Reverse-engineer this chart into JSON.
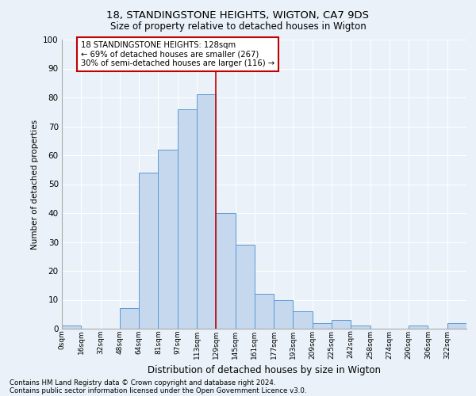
{
  "title1": "18, STANDINGSTONE HEIGHTS, WIGTON, CA7 9DS",
  "title2": "Size of property relative to detached houses in Wigton",
  "xlabel": "Distribution of detached houses by size in Wigton",
  "ylabel": "Number of detached properties",
  "footnote1": "Contains HM Land Registry data © Crown copyright and database right 2024.",
  "footnote2": "Contains public sector information licensed under the Open Government Licence v3.0.",
  "bar_labels": [
    "0sqm",
    "16sqm",
    "32sqm",
    "48sqm",
    "64sqm",
    "81sqm",
    "97sqm",
    "113sqm",
    "129sqm",
    "145sqm",
    "161sqm",
    "177sqm",
    "193sqm",
    "209sqm",
    "225sqm",
    "242sqm",
    "258sqm",
    "274sqm",
    "290sqm",
    "306sqm",
    "322sqm"
  ],
  "bar_values": [
    1,
    0,
    0,
    7,
    54,
    62,
    76,
    81,
    40,
    29,
    12,
    10,
    6,
    2,
    3,
    1,
    0,
    0,
    1,
    0,
    2
  ],
  "bar_color": "#c5d8ed",
  "bar_edge_color": "#5b9bd5",
  "bg_color": "#eaf1f8",
  "grid_color": "#ffffff",
  "vline_x": 8,
  "vline_color": "#c00000",
  "annotation_text": "18 STANDINGSTONE HEIGHTS: 128sqm\n← 69% of detached houses are smaller (267)\n30% of semi-detached houses are larger (116) →",
  "annotation_box_color": "#ffffff",
  "annotation_box_edge_color": "#c00000",
  "ylim": [
    0,
    100
  ],
  "yticks": [
    0,
    10,
    20,
    30,
    40,
    50,
    60,
    70,
    80,
    90,
    100
  ]
}
